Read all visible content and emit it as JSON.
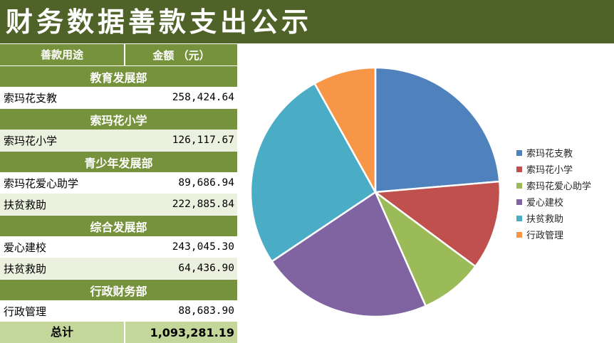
{
  "title": "财务数据善款支出公示",
  "table": {
    "header": {
      "col1": "善款用途",
      "col2": "金额 （元）"
    },
    "sections": [
      {
        "name": "教育发展部",
        "items": [
          {
            "label": "索玛花支教",
            "amount": "258,424.64"
          }
        ]
      },
      {
        "name": "索玛花小学",
        "items": [
          {
            "label": "索玛花小学",
            "amount": "126,117.67"
          }
        ]
      },
      {
        "name": "青少年发展部",
        "items": [
          {
            "label": "索玛花爱心助学",
            "amount": "89,686.94"
          },
          {
            "label": "扶贫救助",
            "amount": "222,885.84"
          }
        ]
      },
      {
        "name": "综合发展部",
        "items": [
          {
            "label": "爱心建校",
            "amount": "243,045.30"
          },
          {
            "label": "扶贫救助",
            "amount": "64,436.90"
          }
        ]
      },
      {
        "name": "行政财务部",
        "items": [
          {
            "label": "行政管理",
            "amount": "88,683.90"
          }
        ]
      }
    ],
    "total": {
      "label": "总计",
      "amount": "1,093,281.19"
    }
  },
  "chart_data": {
    "type": "pie",
    "categories": [
      "索玛花支教",
      "索玛花小学",
      "索玛花爱心助学",
      "爱心建校",
      "扶贫救助",
      "行政管理"
    ],
    "values": [
      258424.64,
      126117.67,
      89686.94,
      243045.3,
      287322.74,
      88683.9
    ],
    "colors": [
      "#4f81bd",
      "#c0504d",
      "#9bbb59",
      "#8064a2",
      "#4bacc6",
      "#f79646"
    ],
    "legend_position": "right"
  }
}
